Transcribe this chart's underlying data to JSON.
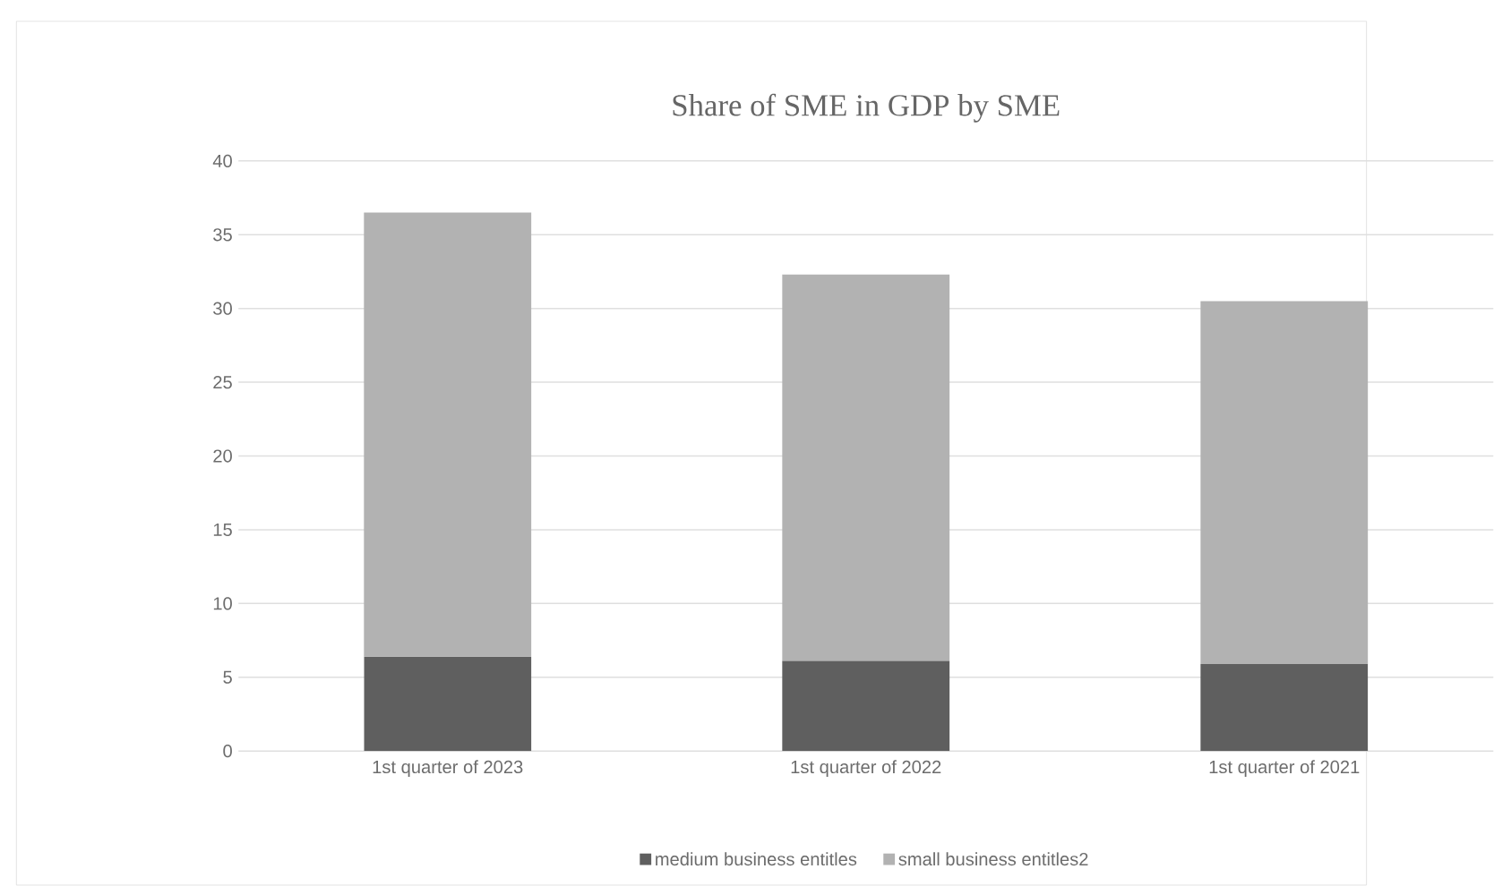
{
  "chart_data": {
    "type": "bar",
    "stacked": true,
    "title": "Share of SME in GDP by SME",
    "categories": [
      "1st quarter of 2023",
      "1st quarter of 2022",
      "1st quarter of 2021"
    ],
    "series": [
      {
        "name": "medium business entitles",
        "color": "#5f5f5f",
        "values": [
          6.4,
          6.1,
          5.9
        ]
      },
      {
        "name": "small business entitles2",
        "color": "#b2b2b2",
        "values": [
          30.1,
          26.2,
          24.6
        ]
      }
    ],
    "ylim": [
      0,
      40
    ],
    "yticks": [
      0,
      5,
      10,
      15,
      20,
      25,
      30,
      35,
      40
    ],
    "grid": "y",
    "legend": "bottom"
  }
}
